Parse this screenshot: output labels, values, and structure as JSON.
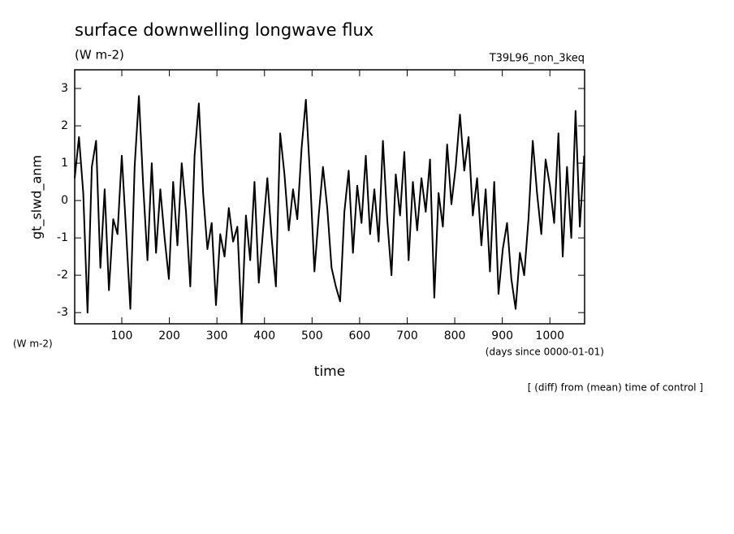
{
  "chart_data": {
    "type": "line",
    "title": "surface downwelling longwave flux",
    "units": "(W m-2)",
    "run_label": "T39L96_non_3keq",
    "y_label": "gt_slwd_anm",
    "y_units": "(W m-2)",
    "x_units": "(days since 0000-01-01)",
    "x_label": "time",
    "note": "[ (diff) from (mean) time of control ]",
    "xlim": [
      1,
      1073
    ],
    "xticks": [
      100,
      200,
      300,
      400,
      500,
      600,
      700,
      800,
      900,
      1000
    ],
    "ylim": [
      -3.3,
      3.5
    ],
    "yticks": [
      -3,
      -2,
      -1,
      0,
      1,
      2,
      3
    ],
    "series": [
      {
        "color": "#000000",
        "x": [
          1,
          10,
          19,
          28,
          37,
          46,
          55,
          64,
          73,
          82,
          91,
          100,
          109,
          118,
          127,
          136,
          145,
          154,
          163,
          172,
          181,
          190,
          199,
          208,
          217,
          226,
          235,
          244,
          253,
          262,
          271,
          280,
          289,
          298,
          307,
          316,
          325,
          334,
          343,
          352,
          361,
          370,
          379,
          388,
          397,
          406,
          415,
          424,
          433,
          442,
          451,
          460,
          469,
          478,
          487,
          496,
          505,
          514,
          523,
          532,
          541,
          550,
          559,
          568,
          577,
          586,
          595,
          604,
          613,
          622,
          631,
          640,
          649,
          658,
          667,
          676,
          685,
          694,
          703,
          712,
          721,
          730,
          739,
          748,
          757,
          766,
          775,
          784,
          793,
          802,
          811,
          820,
          829,
          838,
          847,
          856,
          865,
          874,
          883,
          892,
          901,
          910,
          919,
          928,
          937,
          946,
          955,
          964,
          973,
          982,
          991,
          1000,
          1009,
          1018,
          1027,
          1036,
          1045,
          1054,
          1063,
          1072
        ],
        "values": [
          0.6,
          1.7,
          0.2,
          -3.0,
          0.9,
          1.6,
          -1.8,
          0.3,
          -2.4,
          -0.5,
          -0.9,
          1.2,
          -0.8,
          -2.9,
          0.9,
          2.8,
          0.4,
          -1.6,
          1.0,
          -1.4,
          0.3,
          -1.0,
          -2.1,
          0.5,
          -1.2,
          1.0,
          -0.3,
          -2.3,
          1.2,
          2.6,
          0.2,
          -1.3,
          -0.6,
          -2.8,
          -0.9,
          -1.5,
          -0.2,
          -1.1,
          -0.7,
          -3.3,
          -0.4,
          -1.6,
          0.5,
          -2.2,
          -0.8,
          0.6,
          -1.0,
          -2.3,
          1.8,
          0.7,
          -0.8,
          0.3,
          -0.5,
          1.4,
          2.7,
          0.6,
          -1.9,
          -0.4,
          0.9,
          -0.2,
          -1.8,
          -2.3,
          -2.7,
          -0.3,
          0.8,
          -1.4,
          0.4,
          -0.6,
          1.2,
          -0.9,
          0.3,
          -1.1,
          1.6,
          -0.5,
          -2.0,
          0.7,
          -0.4,
          1.3,
          -1.6,
          0.5,
          -0.8,
          0.6,
          -0.3,
          1.1,
          -2.6,
          0.2,
          -0.7,
          1.5,
          -0.1,
          0.9,
          2.3,
          0.8,
          1.7,
          -0.4,
          0.6,
          -1.2,
          0.3,
          -1.9,
          0.5,
          -2.5,
          -1.3,
          -0.6,
          -2.1,
          -2.9,
          -1.4,
          -2.0,
          -0.5,
          1.6,
          0.2,
          -0.9,
          1.1,
          0.4,
          -0.6,
          1.8,
          -1.5,
          0.9,
          -1.0,
          2.4,
          -0.7,
          1.2
        ]
      }
    ]
  }
}
